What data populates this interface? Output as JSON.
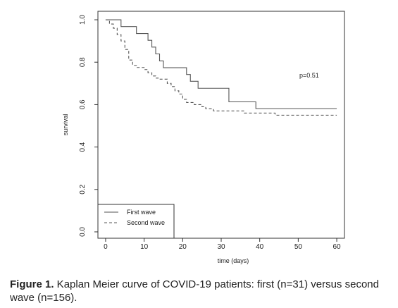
{
  "chart_data": {
    "type": "line",
    "subtype": "kaplan-meier step curve",
    "xlabel": "time (days)",
    "ylabel": "survival",
    "xlim": [
      -2,
      62
    ],
    "ylim": [
      -0.03,
      1.04
    ],
    "x_ticks": [
      0,
      10,
      20,
      30,
      40,
      50,
      60
    ],
    "y_ticks": [
      0.0,
      0.2,
      0.4,
      0.6,
      0.8,
      1.0
    ],
    "x_tick_labels": [
      "0",
      "10",
      "20",
      "30",
      "40",
      "50",
      "60"
    ],
    "y_tick_labels": [
      "0.0",
      "0.2",
      "0.4",
      "0.6",
      "0.8",
      "1.0"
    ],
    "grid": false,
    "legend_position": "bottom-left",
    "annotation": "p=0.51",
    "series": [
      {
        "name": "First wave",
        "line_style": "solid",
        "color": "#555555",
        "x": [
          0,
          4,
          8,
          11,
          12,
          13,
          14,
          15,
          21,
          22,
          24,
          32,
          39,
          60
        ],
        "y": [
          1.0,
          0.968,
          0.935,
          0.903,
          0.871,
          0.839,
          0.806,
          0.774,
          0.742,
          0.71,
          0.677,
          0.613,
          0.581,
          0.581
        ]
      },
      {
        "name": "Second wave",
        "line_style": "dashed",
        "color": "#555555",
        "x": [
          0,
          1,
          2,
          3,
          4,
          5,
          6,
          7,
          8,
          10,
          11,
          12,
          13,
          14,
          16,
          17,
          18,
          19,
          20,
          21,
          23,
          25,
          26,
          28,
          32,
          36,
          44,
          60
        ],
        "y": [
          1.0,
          0.98,
          0.96,
          0.93,
          0.9,
          0.86,
          0.81,
          0.785,
          0.775,
          0.765,
          0.75,
          0.735,
          0.725,
          0.72,
          0.7,
          0.685,
          0.665,
          0.65,
          0.625,
          0.61,
          0.6,
          0.59,
          0.58,
          0.57,
          0.57,
          0.56,
          0.55,
          0.55
        ]
      }
    ]
  },
  "caption": {
    "label": "Figure 1.",
    "text": " Kaplan Meier curve of COVID-19 patients: first (n=31) versus second wave (n=156)."
  }
}
